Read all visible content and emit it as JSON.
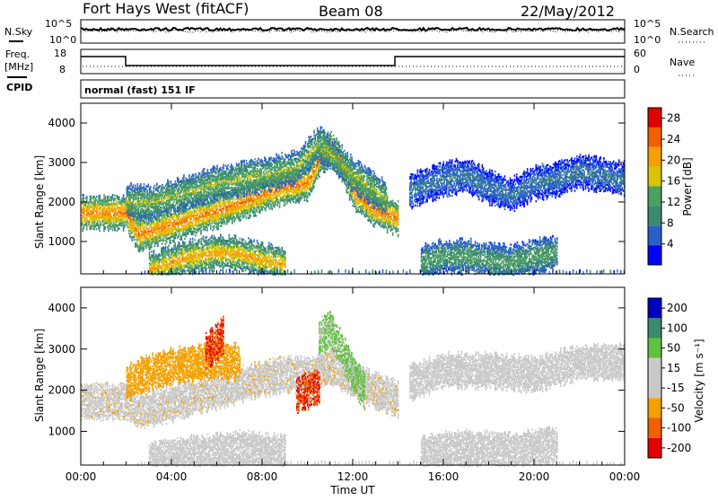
{
  "header": {
    "station": "Fort Hays West (fitACF)",
    "beam": "Beam 08",
    "date": "22/May/2012"
  },
  "noise_panel": {
    "left_label": "N.Sky",
    "right_label": "N.Search",
    "left_ticks": [
      "10^5",
      "10^0"
    ],
    "right_ticks": [
      "10^5",
      "10^0"
    ]
  },
  "freq_panel": {
    "left_label_1": "Freq.",
    "left_label_2": "[MHz]",
    "right_label": "Nave",
    "left_ticks": [
      "18",
      "8"
    ],
    "right_ticks": [
      "60",
      "0"
    ]
  },
  "cpid_panel": {
    "label": "CPID",
    "mode_text": "normal (fast) 151 IF"
  },
  "colors": {
    "power_scale": [
      "#0000ff",
      "#2860c8",
      "#3a8a70",
      "#4ca060",
      "#d8c400",
      "#f4a000",
      "#f06000",
      "#e00000"
    ],
    "velocity_scale": [
      "#e00000",
      "#f06000",
      "#f4a000",
      "#c8c8c8",
      "#c8c8c8",
      "#60c040",
      "#3a8a70",
      "#0000c0"
    ]
  },
  "chart_data": [
    {
      "type": "heatmap",
      "panel": "power",
      "xlabel": "Time UT",
      "ylabel": "Slant Range [km]",
      "x_ticks": [
        "00:00",
        "04:00",
        "08:00",
        "12:00",
        "16:00",
        "20:00",
        "00:00"
      ],
      "x_range_hours": [
        0,
        24
      ],
      "y_ticks": [
        1000,
        2000,
        3000,
        4000
      ],
      "y_range_km": [
        180,
        4500
      ],
      "colorbar_label": "Power [dB]",
      "colorbar_ticks": [
        4,
        8,
        12,
        16,
        20,
        24,
        28
      ],
      "colorbar_range": [
        0,
        30
      ],
      "bands": [
        {
          "t": [
            0,
            2,
            2.5,
            4,
            6,
            8,
            9,
            10,
            10.5,
            11,
            11.5,
            12,
            13,
            14
          ],
          "r": [
            1750,
            1750,
            1200,
            1450,
            1800,
            2200,
            2400,
            2500,
            3100,
            3400,
            3000,
            2300,
            1800,
            1600
          ],
          "level": 18
        },
        {
          "t": [
            2,
            3,
            4,
            6,
            8,
            9.5,
            10.5,
            12,
            13.5
          ],
          "r": [
            2050,
            2000,
            2150,
            2500,
            2700,
            2900,
            3500,
            2700,
            2100
          ],
          "level": 12
        },
        {
          "t": [
            3,
            4,
            5,
            6,
            7,
            8,
            9
          ],
          "r": [
            300,
            500,
            650,
            750,
            700,
            550,
            450
          ],
          "level": 16
        },
        {
          "t": [
            14.5,
            15,
            16,
            17,
            18,
            19,
            20,
            21,
            22,
            23,
            24
          ],
          "r": [
            2300,
            2400,
            2600,
            2700,
            2400,
            2200,
            2500,
            2600,
            2800,
            2700,
            2600
          ],
          "level": 6
        },
        {
          "t": [
            15,
            16,
            17,
            18,
            19,
            20,
            21
          ],
          "r": [
            500,
            650,
            650,
            550,
            500,
            650,
            750
          ],
          "level": 10
        }
      ]
    },
    {
      "type": "heatmap",
      "panel": "velocity",
      "xlabel": "Time UT",
      "ylabel": "Slant Range [km]",
      "x_ticks": [
        "00:00",
        "04:00",
        "08:00",
        "12:00",
        "16:00",
        "20:00",
        "00:00"
      ],
      "x_range_hours": [
        0,
        24
      ],
      "y_ticks": [
        1000,
        2000,
        3000,
        4000
      ],
      "y_range_km": [
        180,
        4500
      ],
      "colorbar_label": "Velocity [m s⁻¹]",
      "colorbar_ticks": [
        200,
        100,
        50,
        15,
        -15,
        -50,
        -100,
        -200
      ],
      "bands": [
        {
          "t": [
            0,
            2,
            2.5,
            4,
            6,
            8,
            9,
            10,
            11,
            12,
            13,
            14
          ],
          "r": [
            1750,
            1750,
            1500,
            1700,
            2000,
            2300,
            2400,
            2400,
            2600,
            2300,
            2000,
            1800
          ],
          "vel": -20
        },
        {
          "t": [
            2,
            3,
            4,
            6,
            7
          ],
          "r": [
            2200,
            2450,
            2600,
            2750,
            2700
          ],
          "vel": -60
        },
        {
          "t": [
            5.5,
            6,
            6.3
          ],
          "r": [
            2950,
            3200,
            3400
          ],
          "vel": -150
        },
        {
          "t": [
            10.5,
            11,
            11.5,
            12,
            12.5
          ],
          "r": [
            3300,
            3500,
            3000,
            2400,
            2000
          ],
          "vel": 20
        },
        {
          "t": [
            9.5,
            10,
            10.5
          ],
          "r": [
            1900,
            2000,
            2100
          ],
          "vel": -150
        },
        {
          "t": [
            3,
            5,
            7,
            9
          ],
          "r": [
            300,
            500,
            600,
            500
          ],
          "vel": -5
        },
        {
          "t": [
            14.5,
            16,
            18,
            20,
            22,
            24
          ],
          "r": [
            2200,
            2500,
            2500,
            2400,
            2700,
            2700
          ],
          "vel": 0
        },
        {
          "t": [
            15,
            17,
            19,
            21
          ],
          "r": [
            500,
            600,
            550,
            700
          ],
          "vel": -5
        }
      ]
    }
  ]
}
